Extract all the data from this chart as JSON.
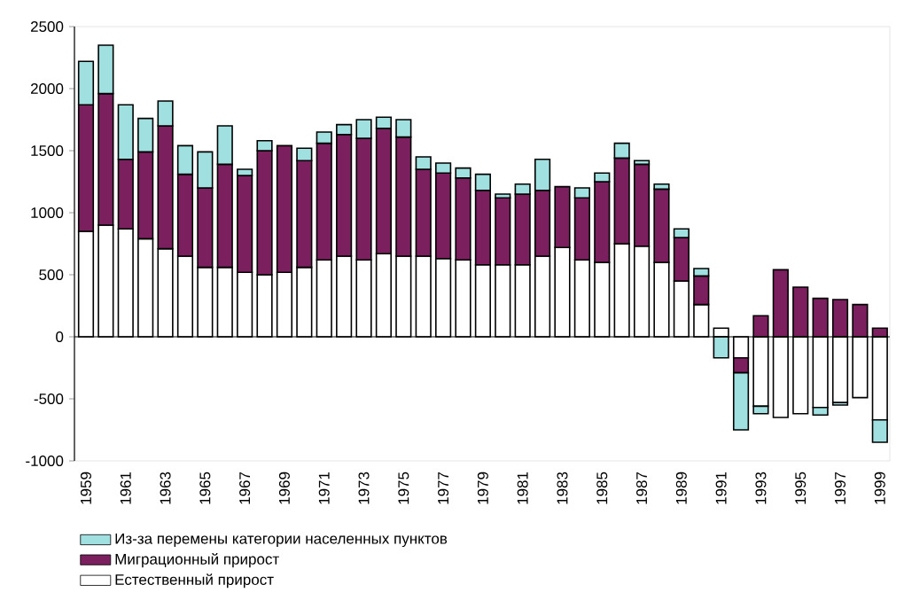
{
  "chart_data": {
    "type": "bar",
    "stacked": true,
    "categories": [
      "1959",
      null,
      "1961",
      null,
      "1963",
      null,
      "1965",
      null,
      "1967",
      null,
      "1969",
      null,
      "1971",
      null,
      "1973",
      null,
      "1975",
      null,
      "1977",
      null,
      "1979",
      null,
      "1981",
      null,
      "1983",
      null,
      "1985",
      null,
      "1987",
      null,
      "1989",
      null,
      "1991",
      null,
      "1993",
      null,
      "1995",
      null,
      "1997",
      null,
      "1999"
    ],
    "series": [
      {
        "name": "Естественный прирост",
        "color": "#ffffff",
        "values": [
          850,
          900,
          870,
          790,
          710,
          650,
          560,
          560,
          520,
          500,
          520,
          560,
          620,
          650,
          620,
          670,
          650,
          650,
          630,
          620,
          580,
          580,
          580,
          650,
          720,
          620,
          600,
          750,
          730,
          600,
          450,
          260,
          70,
          -170,
          -560,
          -650,
          -620,
          -570,
          -530,
          -490,
          -670
        ]
      },
      {
        "name": "Миграционный прирост",
        "color": "#7b1f5e",
        "values": [
          1020,
          1060,
          560,
          700,
          990,
          660,
          640,
          830,
          780,
          1000,
          1020,
          860,
          940,
          980,
          980,
          1010,
          960,
          700,
          690,
          660,
          600,
          540,
          570,
          530,
          490,
          500,
          650,
          690,
          660,
          590,
          350,
          230,
          0,
          -120,
          170,
          540,
          400,
          310,
          300,
          260,
          70
        ]
      },
      {
        "name": "Из-за перемены категории населенных пунктов",
        "color": "#a0e0e0",
        "values": [
          350,
          390,
          440,
          270,
          200,
          230,
          290,
          310,
          50,
          80,
          null,
          100,
          90,
          80,
          150,
          90,
          140,
          100,
          80,
          80,
          130,
          30,
          80,
          250,
          null,
          80,
          70,
          120,
          30,
          40,
          70,
          60,
          -170,
          -460,
          -60,
          0,
          0,
          -60,
          -20,
          0,
          -180
        ]
      }
    ],
    "ylim": [
      -1000,
      2500
    ],
    "yticks": [
      -1000,
      -500,
      0,
      500,
      1000,
      1500,
      2000,
      2500
    ],
    "legend": "bottom"
  }
}
